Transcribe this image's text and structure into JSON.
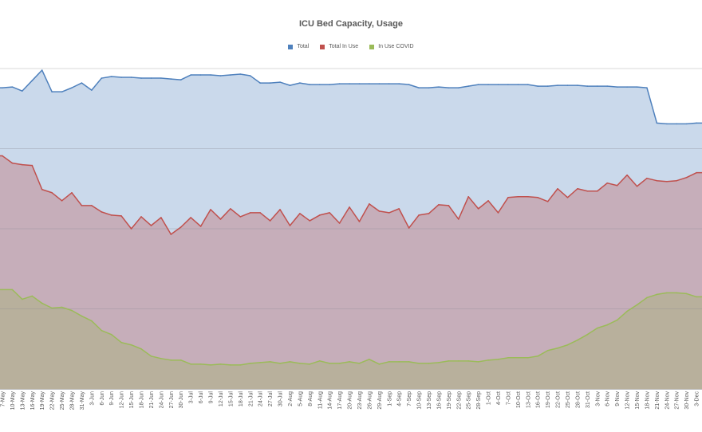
{
  "chart_data": {
    "type": "area",
    "title": "ICU Bed Capacity, Usage",
    "xlabel": "",
    "ylabel": "",
    "ylim": [
      0,
      4
    ],
    "grid": true,
    "legend_position": "top",
    "categories": [
      "7-May",
      "10-May",
      "13-May",
      "16-May",
      "19-May",
      "22-May",
      "25-May",
      "28-May",
      "31-May",
      "3-Jun",
      "6-Jun",
      "9-Jun",
      "12-Jun",
      "15-Jun",
      "18-Jun",
      "21-Jun",
      "24-Jun",
      "27-Jun",
      "30-Jun",
      "3-Jul",
      "6-Jul",
      "9-Jul",
      "12-Jul",
      "15-Jul",
      "18-Jul",
      "21-Jul",
      "24-Jul",
      "27-Jul",
      "30-Jul",
      "2-Aug",
      "5-Aug",
      "8-Aug",
      "11-Aug",
      "14-Aug",
      "17-Aug",
      "20-Aug",
      "23-Aug",
      "26-Aug",
      "29-Aug",
      "1-Sep",
      "4-Sep",
      "7-Sep",
      "10-Sep",
      "13-Sep",
      "16-Sep",
      "19-Sep",
      "22-Sep",
      "25-Sep",
      "28-Sep",
      "1-Oct",
      "4-Oct",
      "7-Oct",
      "10-Oct",
      "13-Oct",
      "16-Oct",
      "19-Oct",
      "22-Oct",
      "25-Oct",
      "28-Oct",
      "31-Oct",
      "3-Nov",
      "6-Nov",
      "9-Nov",
      "12-Nov",
      "15-Nov",
      "18-Nov",
      "21-Nov",
      "24-Nov",
      "27-Nov",
      "30-Nov",
      "3-Dec"
    ],
    "series": [
      {
        "name": "Total",
        "line_color": "#4f81bd",
        "fill_color": "#cad9eb",
        "values": [
          3.76,
          3.77,
          3.72,
          3.85,
          3.98,
          3.71,
          3.71,
          3.76,
          3.82,
          3.73,
          3.88,
          3.9,
          3.89,
          3.89,
          3.88,
          3.88,
          3.88,
          3.87,
          3.86,
          3.92,
          3.92,
          3.92,
          3.91,
          3.92,
          3.93,
          3.91,
          3.82,
          3.82,
          3.83,
          3.79,
          3.82,
          3.8,
          3.8,
          3.8,
          3.81,
          3.81,
          3.81,
          3.81,
          3.81,
          3.81,
          3.81,
          3.8,
          3.76,
          3.76,
          3.77,
          3.76,
          3.76,
          3.78,
          3.8,
          3.8,
          3.8,
          3.8,
          3.8,
          3.8,
          3.78,
          3.78,
          3.79,
          3.79,
          3.79,
          3.78,
          3.78,
          3.78,
          3.77,
          3.77,
          3.77,
          3.76,
          3.32,
          3.31,
          3.31,
          3.31,
          3.32
        ]
      },
      {
        "name": "Total In Use",
        "line_color": "#c0504d",
        "fill_color": "#c6aeba",
        "values": [
          2.91,
          2.82,
          2.8,
          2.79,
          2.49,
          2.45,
          2.35,
          2.45,
          2.29,
          2.29,
          2.21,
          2.17,
          2.16,
          2.0,
          2.15,
          2.04,
          2.14,
          1.93,
          2.02,
          2.14,
          2.03,
          2.24,
          2.12,
          2.25,
          2.15,
          2.2,
          2.2,
          2.1,
          2.24,
          2.04,
          2.19,
          2.1,
          2.17,
          2.2,
          2.07,
          2.27,
          2.09,
          2.31,
          2.22,
          2.2,
          2.25,
          2.01,
          2.17,
          2.19,
          2.3,
          2.29,
          2.12,
          2.4,
          2.25,
          2.35,
          2.2,
          2.39,
          2.4,
          2.4,
          2.39,
          2.34,
          2.5,
          2.39,
          2.5,
          2.47,
          2.47,
          2.57,
          2.54,
          2.67,
          2.53,
          2.63,
          2.6,
          2.59,
          2.6,
          2.64,
          2.7
        ]
      },
      {
        "name": "In Use COVID",
        "line_color": "#9bbb59",
        "fill_color": "#b8b09c",
        "values": [
          1.24,
          1.24,
          1.12,
          1.16,
          1.07,
          1.01,
          1.02,
          0.98,
          0.91,
          0.85,
          0.73,
          0.68,
          0.58,
          0.55,
          0.5,
          0.41,
          0.38,
          0.36,
          0.36,
          0.31,
          0.31,
          0.3,
          0.31,
          0.3,
          0.3,
          0.32,
          0.33,
          0.34,
          0.32,
          0.34,
          0.32,
          0.31,
          0.35,
          0.32,
          0.32,
          0.34,
          0.32,
          0.37,
          0.31,
          0.34,
          0.34,
          0.34,
          0.32,
          0.32,
          0.33,
          0.35,
          0.35,
          0.35,
          0.34,
          0.36,
          0.37,
          0.39,
          0.39,
          0.39,
          0.41,
          0.48,
          0.51,
          0.55,
          0.61,
          0.68,
          0.76,
          0.8,
          0.86,
          0.97,
          1.05,
          1.14,
          1.18,
          1.2,
          1.2,
          1.19,
          1.15
        ]
      }
    ]
  }
}
